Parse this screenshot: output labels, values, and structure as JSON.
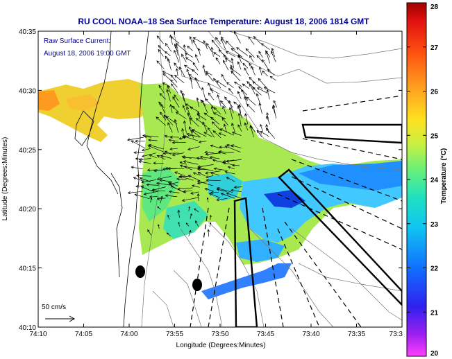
{
  "title": "RU COOL  NOAA–18  Sea Surface Temperature:  August 18, 2006 1814 GMT",
  "annotation": {
    "line1": "Raw Surface Current:",
    "line2": "August 18, 2006 19:00 GMT"
  },
  "scale_label": "50 cm/s",
  "xlabel": "Longitude (Degrees:Minutes)",
  "ylabel": "Latitude (Degrees:Minutes)",
  "xticks": [
    "74:10",
    "74:05",
    "74:00",
    "73:55",
    "73:50",
    "73:45",
    "73:40",
    "73:35",
    "73:3"
  ],
  "yticks": [
    "40:35",
    "40:30",
    "40:25",
    "40:20",
    "40:15",
    "40:10"
  ],
  "colorbar": {
    "label": "Temperature (°C)",
    "ticks": [
      "28",
      "27",
      "26",
      "25",
      "24",
      "23",
      "22",
      "21",
      "20"
    ],
    "min": 20,
    "max": 28
  },
  "colors": {
    "title": "#000099",
    "annotation": "#000099"
  }
}
